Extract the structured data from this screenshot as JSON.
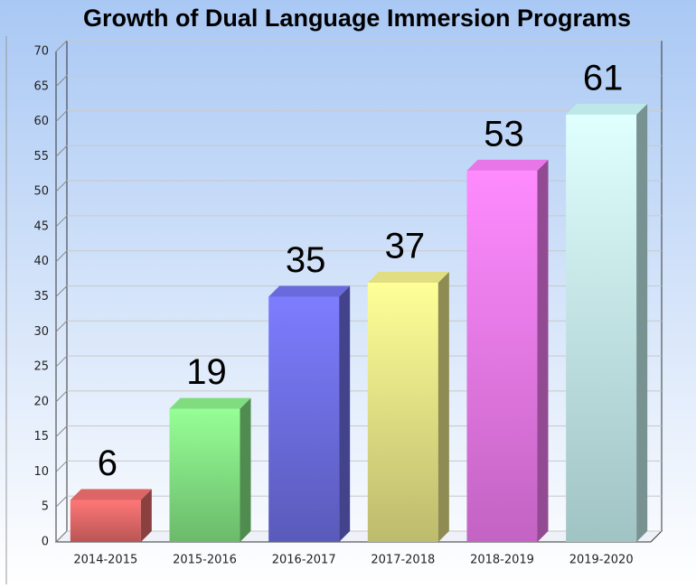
{
  "chart_data": {
    "type": "bar3d",
    "title": "Growth of Dual Language Immersion Programs",
    "categories": [
      "2014-2015",
      "2015-2016",
      "2016-2017",
      "2017-2018",
      "2018-2019",
      "2019-2020"
    ],
    "values": [
      6,
      19,
      35,
      37,
      53,
      61
    ],
    "colors": [
      "#e86a6a",
      "#86e886",
      "#7070e8",
      "#ecea88",
      "#f47cf4",
      "#c8f4f4"
    ],
    "ylim": [
      0,
      70
    ],
    "yticks": [
      0,
      5,
      10,
      15,
      20,
      25,
      30,
      35,
      40,
      45,
      50,
      55,
      60,
      65,
      70
    ],
    "grid": true
  }
}
